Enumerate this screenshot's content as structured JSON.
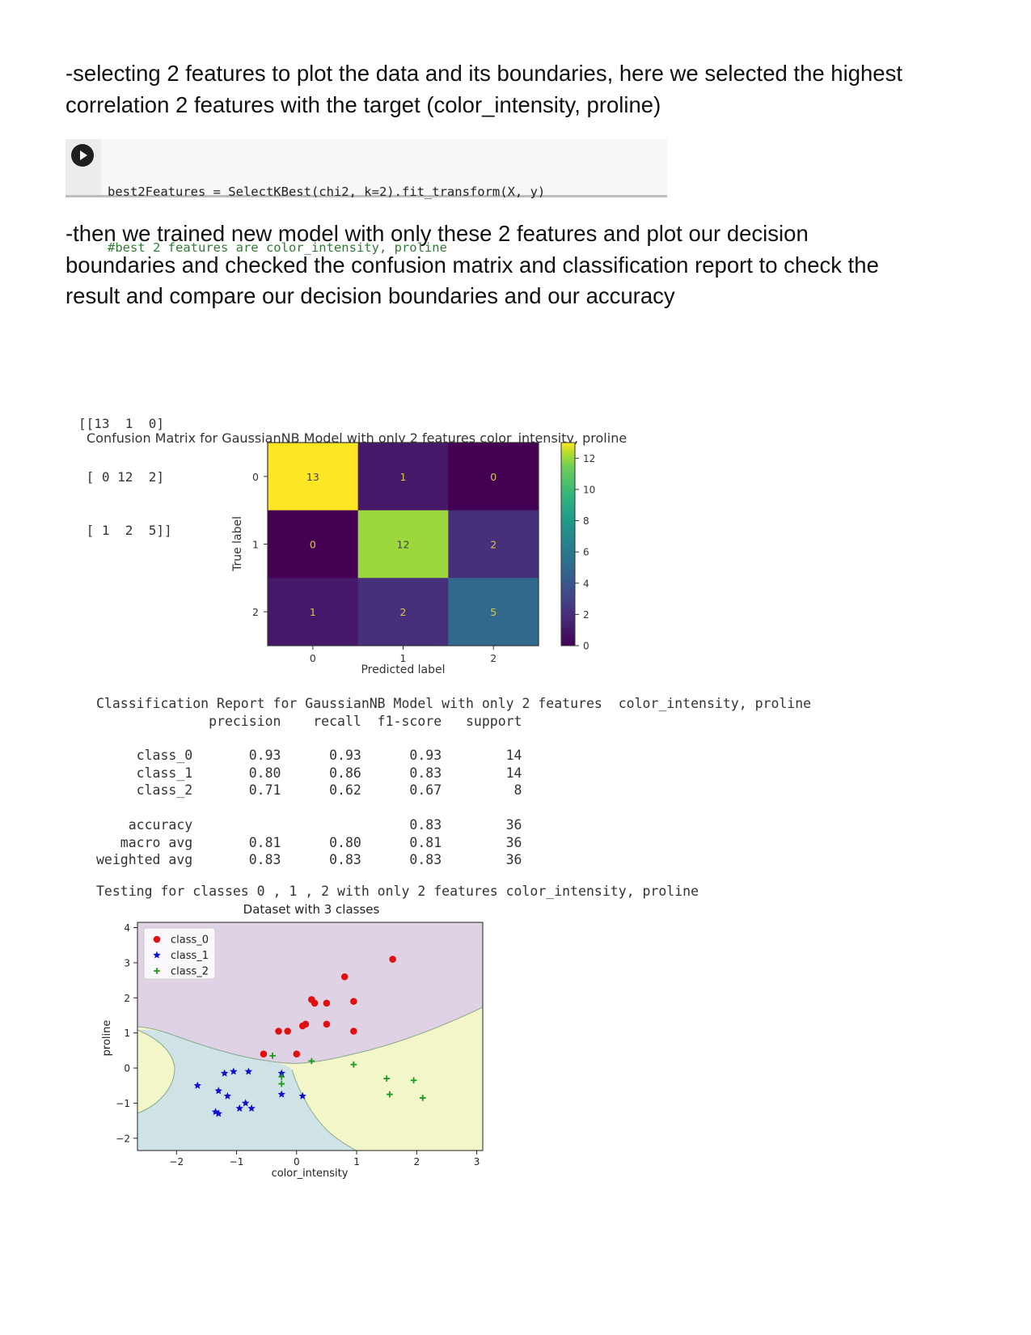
{
  "intro": {
    "lines": [
      "-selecting 2 features to plot the data and its boundaries, here we selected the highest",
      "correlation 2 features with the target (color_intensity, proline)"
    ]
  },
  "code_cell": {
    "line1": "best2Features = SelectKBest(chi2, k=2).fit_transform(X, y)",
    "line2": "#best 2 features are color_intensity, proline"
  },
  "paragraph2": {
    "lines": [
      "-then we trained new model with only these 2 features and plot our decision",
      "boundaries and checked the confusion matrix and classification report to check the",
      "result and compare our decision boundaries and our accuracy"
    ]
  },
  "confusion_text": {
    "lines": [
      "[[13  1  0]",
      " [ 0 12  2]",
      " [ 1  2  5]]"
    ],
    "title": "Confusion Matrix for GaussianNB Model with only 2 features  color_intensity, proline"
  },
  "report": {
    "title": "Classification Report for GaussianNB Model with only 2 features  color_intensity, proline",
    "header": "              precision    recall  f1-score   support",
    "rows": [
      "     class_0       0.93      0.93      0.93        14",
      "     class_1       0.80      0.86      0.83        14",
      "     class_2       0.71      0.62      0.67         8",
      "    accuracy                           0.83        36",
      "   macro avg       0.81      0.80      0.81        36",
      "weighted avg       0.83      0.83      0.83        36"
    ]
  },
  "testing_line": "Testing for classes 0 , 1 , 2 with only 2 features color_intensity, proline",
  "chart_data": [
    {
      "type": "heatmap",
      "title": "",
      "xlabel": "Predicted label",
      "ylabel": "True label",
      "x_ticks": [
        "0",
        "1",
        "2"
      ],
      "y_ticks": [
        "0",
        "1",
        "2"
      ],
      "matrix": [
        [
          13,
          1,
          0
        ],
        [
          0,
          12,
          2
        ],
        [
          1,
          2,
          5
        ]
      ],
      "cell_labels": [
        [
          "13",
          "1",
          "0"
        ],
        [
          "0",
          "12",
          "2"
        ],
        [
          "1",
          "2",
          "5"
        ]
      ],
      "colormap": "viridis",
      "colorbar": {
        "min": 0,
        "max": 13,
        "ticks": [
          0,
          2,
          4,
          6,
          8,
          10,
          12
        ],
        "tick_labels": [
          "0",
          "2",
          "4",
          "6",
          "8",
          "10",
          "12"
        ]
      }
    },
    {
      "type": "scatter",
      "title": "Dataset with 3 classes",
      "xlabel": "color_intensity",
      "ylabel": "proline",
      "xlim": [
        -2.65,
        3.1
      ],
      "ylim": [
        -2.35,
        4.15
      ],
      "x_ticks": [
        -2,
        -1,
        0,
        1,
        2,
        3
      ],
      "x_tick_labels": [
        "−2",
        "−1",
        "0",
        "1",
        "2",
        "3"
      ],
      "y_ticks": [
        -2,
        -1,
        0,
        1,
        2,
        3,
        4
      ],
      "y_tick_labels": [
        "−2",
        "−1",
        "0",
        "1",
        "2",
        "3",
        "4"
      ],
      "legend_position": "top-left",
      "region_colors": {
        "class_0": "#dfd2e4",
        "class_1": "#cfe3e7",
        "class_2": "#f2f6c8"
      },
      "series": [
        {
          "name": "class_0",
          "marker": "circle",
          "color": "#e01010",
          "points": [
            [
              1.6,
              3.1
            ],
            [
              0.8,
              2.6
            ],
            [
              0.25,
              1.95
            ],
            [
              0.3,
              1.85
            ],
            [
              0.5,
              1.85
            ],
            [
              0.95,
              1.9
            ],
            [
              0.5,
              1.25
            ],
            [
              0.1,
              1.2
            ],
            [
              0.15,
              1.25
            ],
            [
              0.95,
              1.05
            ],
            [
              -0.3,
              1.05
            ],
            [
              -0.15,
              1.05
            ],
            [
              0.0,
              0.4
            ],
            [
              -0.55,
              0.4
            ]
          ]
        },
        {
          "name": "class_1",
          "marker": "star",
          "color": "#1010d0",
          "points": [
            [
              -1.65,
              -0.5
            ],
            [
              -1.2,
              -0.15
            ],
            [
              -1.05,
              -0.1
            ],
            [
              -0.8,
              -0.1
            ],
            [
              -0.25,
              -0.15
            ],
            [
              -1.3,
              -0.65
            ],
            [
              -1.15,
              -0.8
            ],
            [
              -0.85,
              -1.0
            ],
            [
              -0.95,
              -1.15
            ],
            [
              -0.75,
              -1.15
            ],
            [
              -1.35,
              -1.25
            ],
            [
              -1.3,
              -1.3
            ],
            [
              -0.25,
              -0.75
            ],
            [
              0.1,
              -0.8
            ]
          ]
        },
        {
          "name": "class_2",
          "marker": "plus",
          "color": "#1a9a1a",
          "points": [
            [
              -0.4,
              0.35
            ],
            [
              0.25,
              0.2
            ],
            [
              -0.25,
              -0.25
            ],
            [
              -0.25,
              -0.45
            ],
            [
              0.95,
              0.1
            ],
            [
              1.5,
              -0.3
            ],
            [
              1.95,
              -0.35
            ],
            [
              1.55,
              -0.75
            ],
            [
              2.1,
              -0.85
            ]
          ]
        }
      ]
    }
  ]
}
